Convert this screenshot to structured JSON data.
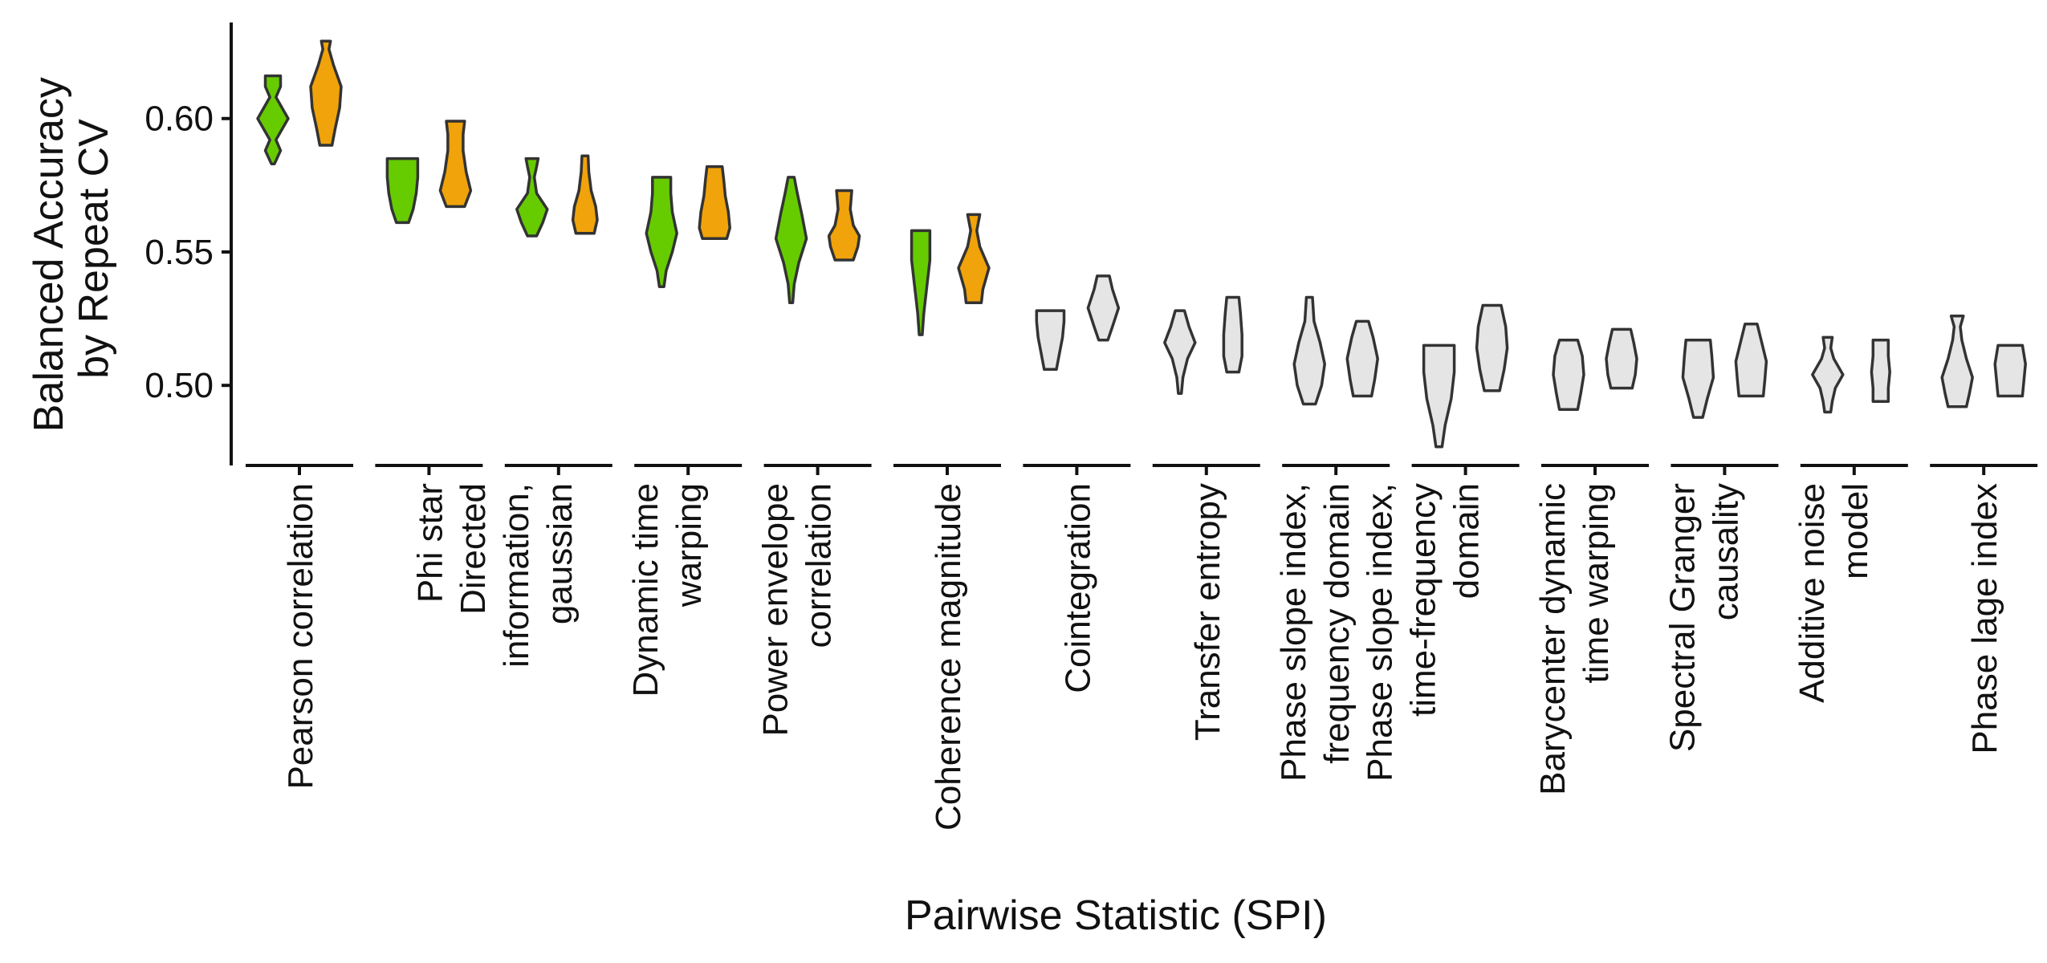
{
  "chart_data": {
    "type": "violin",
    "xlabel": "Pairwise Statistic (SPI)",
    "ylabel": [
      "Balanced Accuracy",
      "by Repeat CV"
    ],
    "ylim": [
      0.47,
      0.636
    ],
    "yticks": [
      "0.50",
      "0.55",
      "0.60"
    ],
    "ytick_values": [
      0.5,
      0.55,
      0.6
    ],
    "colors": {
      "green": "#66cc00",
      "orange": "#f0a30a",
      "grey": "#e5e5e5",
      "outline": "#333333"
    },
    "categories": [
      {
        "label": [
          "Pearson correlation"
        ],
        "series": [
          {
            "color": "green",
            "min": 0.583,
            "max": 0.616,
            "shape": [
              [
                0.583,
                0.1
              ],
              [
                0.588,
                0.5
              ],
              [
                0.592,
                0.2
              ],
              [
                0.6,
                1.0
              ],
              [
                0.608,
                0.2
              ],
              [
                0.612,
                0.5
              ],
              [
                0.616,
                0.5
              ]
            ]
          },
          {
            "color": "orange",
            "min": 0.59,
            "max": 0.629,
            "shape": [
              [
                0.59,
                0.4
              ],
              [
                0.596,
                0.6
              ],
              [
                0.604,
                0.9
              ],
              [
                0.612,
                1.0
              ],
              [
                0.62,
                0.5
              ],
              [
                0.626,
                0.2
              ],
              [
                0.629,
                0.3
              ]
            ]
          }
        ]
      },
      {
        "label": [
          "Phi star"
        ],
        "series": [
          {
            "color": "green",
            "min": 0.561,
            "max": 0.585,
            "shape": [
              [
                0.561,
                0.4
              ],
              [
                0.566,
                0.7
              ],
              [
                0.572,
                0.9
              ],
              [
                0.578,
                1.0
              ],
              [
                0.585,
                1.0
              ]
            ]
          },
          {
            "color": "orange",
            "min": 0.567,
            "max": 0.599,
            "shape": [
              [
                0.567,
                0.6
              ],
              [
                0.573,
                1.0
              ],
              [
                0.58,
                0.7
              ],
              [
                0.588,
                0.5
              ],
              [
                0.594,
                0.5
              ],
              [
                0.599,
                0.6
              ]
            ]
          }
        ]
      },
      {
        "label": [
          "Directed",
          "information,",
          "gaussian"
        ],
        "series": [
          {
            "color": "green",
            "min": 0.556,
            "max": 0.585,
            "shape": [
              [
                0.556,
                0.3
              ],
              [
                0.561,
                0.7
              ],
              [
                0.566,
                1.0
              ],
              [
                0.572,
                0.3
              ],
              [
                0.578,
                0.15
              ],
              [
                0.582,
                0.3
              ],
              [
                0.585,
                0.4
              ]
            ]
          },
          {
            "color": "orange",
            "min": 0.557,
            "max": 0.586,
            "shape": [
              [
                0.557,
                0.6
              ],
              [
                0.562,
                0.8
              ],
              [
                0.567,
                0.7
              ],
              [
                0.573,
                0.4
              ],
              [
                0.58,
                0.25
              ],
              [
                0.586,
                0.2
              ]
            ]
          }
        ]
      },
      {
        "label": [
          "Dynamic time",
          "warping"
        ],
        "series": [
          {
            "color": "green",
            "min": 0.537,
            "max": 0.578,
            "shape": [
              [
                0.537,
                0.15
              ],
              [
                0.543,
                0.3
              ],
              [
                0.55,
                0.7
              ],
              [
                0.557,
                1.0
              ],
              [
                0.565,
                0.7
              ],
              [
                0.572,
                0.6
              ],
              [
                0.578,
                0.6
              ]
            ]
          },
          {
            "color": "orange",
            "min": 0.555,
            "max": 0.582,
            "shape": [
              [
                0.555,
                0.8
              ],
              [
                0.559,
                1.0
              ],
              [
                0.565,
                0.9
              ],
              [
                0.571,
                0.7
              ],
              [
                0.577,
                0.6
              ],
              [
                0.582,
                0.5
              ]
            ]
          }
        ]
      },
      {
        "label": [
          "Power envelope",
          "correlation"
        ],
        "series": [
          {
            "color": "green",
            "min": 0.531,
            "max": 0.578,
            "shape": [
              [
                0.531,
                0.1
              ],
              [
                0.538,
                0.2
              ],
              [
                0.546,
                0.5
              ],
              [
                0.555,
                1.0
              ],
              [
                0.564,
                0.7
              ],
              [
                0.572,
                0.4
              ],
              [
                0.578,
                0.2
              ]
            ]
          },
          {
            "color": "orange",
            "min": 0.547,
            "max": 0.573,
            "shape": [
              [
                0.547,
                0.6
              ],
              [
                0.552,
                0.9
              ],
              [
                0.556,
                1.0
              ],
              [
                0.56,
                0.6
              ],
              [
                0.566,
                0.4
              ],
              [
                0.573,
                0.5
              ]
            ]
          }
        ]
      },
      {
        "label": [
          "Coherence magnitude"
        ],
        "series": [
          {
            "color": "green",
            "min": 0.519,
            "max": 0.558,
            "shape": [
              [
                0.519,
                0.1
              ],
              [
                0.527,
                0.2
              ],
              [
                0.537,
                0.4
              ],
              [
                0.547,
                0.6
              ],
              [
                0.553,
                0.6
              ],
              [
                0.558,
                0.6
              ]
            ]
          },
          {
            "color": "orange",
            "min": 0.531,
            "max": 0.564,
            "shape": [
              [
                0.531,
                0.5
              ],
              [
                0.536,
                0.6
              ],
              [
                0.544,
                1.0
              ],
              [
                0.552,
                0.4
              ],
              [
                0.558,
                0.2
              ],
              [
                0.564,
                0.4
              ]
            ]
          }
        ]
      },
      {
        "label": [
          "Cointegration"
        ],
        "series": [
          {
            "color": "grey",
            "min": 0.506,
            "max": 0.528,
            "shape": [
              [
                0.506,
                0.4
              ],
              [
                0.512,
                0.6
              ],
              [
                0.518,
                0.8
              ],
              [
                0.524,
                0.9
              ],
              [
                0.528,
                0.9
              ]
            ]
          },
          {
            "color": "grey",
            "min": 0.517,
            "max": 0.541,
            "shape": [
              [
                0.517,
                0.3
              ],
              [
                0.522,
                0.6
              ],
              [
                0.529,
                1.0
              ],
              [
                0.536,
                0.6
              ],
              [
                0.541,
                0.4
              ]
            ]
          }
        ]
      },
      {
        "label": [
          "Transfer entropy"
        ],
        "series": [
          {
            "color": "grey",
            "min": 0.497,
            "max": 0.528,
            "shape": [
              [
                0.497,
                0.1
              ],
              [
                0.503,
                0.2
              ],
              [
                0.51,
                0.5
              ],
              [
                0.516,
                1.0
              ],
              [
                0.522,
                0.6
              ],
              [
                0.528,
                0.3
              ]
            ]
          },
          {
            "color": "grey",
            "min": 0.505,
            "max": 0.533,
            "shape": [
              [
                0.505,
                0.4
              ],
              [
                0.511,
                0.6
              ],
              [
                0.519,
                0.6
              ],
              [
                0.527,
                0.5
              ],
              [
                0.533,
                0.4
              ]
            ]
          }
        ]
      },
      {
        "label": [
          "Phase slope index,",
          "frequency domain"
        ],
        "series": [
          {
            "color": "grey",
            "min": 0.493,
            "max": 0.533,
            "shape": [
              [
                0.493,
                0.4
              ],
              [
                0.5,
                0.8
              ],
              [
                0.508,
                1.0
              ],
              [
                0.516,
                0.7
              ],
              [
                0.524,
                0.3
              ],
              [
                0.533,
                0.2
              ]
            ]
          },
          {
            "color": "grey",
            "min": 0.496,
            "max": 0.524,
            "shape": [
              [
                0.496,
                0.6
              ],
              [
                0.502,
                0.8
              ],
              [
                0.51,
                1.0
              ],
              [
                0.518,
                0.7
              ],
              [
                0.524,
                0.4
              ]
            ]
          }
        ]
      },
      {
        "label": [
          "Phase slope index,",
          "time-frequency",
          "domain"
        ],
        "series": [
          {
            "color": "grey",
            "min": 0.477,
            "max": 0.515,
            "shape": [
              [
                0.477,
                0.2
              ],
              [
                0.485,
                0.4
              ],
              [
                0.495,
                0.8
              ],
              [
                0.505,
                1.0
              ],
              [
                0.515,
                1.0
              ]
            ]
          },
          {
            "color": "grey",
            "min": 0.498,
            "max": 0.53,
            "shape": [
              [
                0.498,
                0.5
              ],
              [
                0.506,
                0.8
              ],
              [
                0.514,
                1.0
              ],
              [
                0.522,
                0.9
              ],
              [
                0.53,
                0.6
              ]
            ]
          }
        ]
      },
      {
        "label": [
          "Barycenter dynamic",
          "time warping"
        ],
        "series": [
          {
            "color": "grey",
            "min": 0.491,
            "max": 0.517,
            "shape": [
              [
                0.491,
                0.6
              ],
              [
                0.497,
                0.8
              ],
              [
                0.504,
                1.0
              ],
              [
                0.511,
                0.9
              ],
              [
                0.517,
                0.6
              ]
            ]
          },
          {
            "color": "grey",
            "min": 0.499,
            "max": 0.521,
            "shape": [
              [
                0.499,
                0.7
              ],
              [
                0.504,
                0.9
              ],
              [
                0.51,
                1.0
              ],
              [
                0.516,
                0.8
              ],
              [
                0.521,
                0.6
              ]
            ]
          }
        ]
      },
      {
        "label": [
          "Spectral Granger",
          "causality"
        ],
        "series": [
          {
            "color": "grey",
            "min": 0.488,
            "max": 0.517,
            "shape": [
              [
                0.488,
                0.3
              ],
              [
                0.495,
                0.6
              ],
              [
                0.503,
                1.0
              ],
              [
                0.511,
                0.9
              ],
              [
                0.517,
                0.8
              ]
            ]
          },
          {
            "color": "grey",
            "min": 0.496,
            "max": 0.523,
            "shape": [
              [
                0.496,
                0.8
              ],
              [
                0.502,
                0.9
              ],
              [
                0.509,
                1.0
              ],
              [
                0.516,
                0.7
              ],
              [
                0.523,
                0.4
              ]
            ]
          }
        ]
      },
      {
        "label": [
          "Additive noise",
          "model"
        ],
        "series": [
          {
            "color": "grey",
            "min": 0.49,
            "max": 0.518,
            "shape": [
              [
                0.49,
                0.2
              ],
              [
                0.494,
                0.3
              ],
              [
                0.499,
                0.5
              ],
              [
                0.504,
                1.0
              ],
              [
                0.51,
                0.4
              ],
              [
                0.514,
                0.2
              ],
              [
                0.518,
                0.3
              ]
            ]
          },
          {
            "color": "grey",
            "min": 0.494,
            "max": 0.517,
            "shape": [
              [
                0.494,
                0.5
              ],
              [
                0.499,
                0.5
              ],
              [
                0.505,
                0.6
              ],
              [
                0.511,
                0.5
              ],
              [
                0.517,
                0.5
              ]
            ]
          }
        ]
      },
      {
        "label": [
          "Phase lage index"
        ],
        "series": [
          {
            "color": "grey",
            "min": 0.492,
            "max": 0.526,
            "shape": [
              [
                0.492,
                0.6
              ],
              [
                0.497,
                0.8
              ],
              [
                0.503,
                1.0
              ],
              [
                0.51,
                0.6
              ],
              [
                0.517,
                0.3
              ],
              [
                0.522,
                0.2
              ],
              [
                0.526,
                0.4
              ]
            ]
          },
          {
            "color": "grey",
            "min": 0.496,
            "max": 0.515,
            "shape": [
              [
                0.496,
                0.8
              ],
              [
                0.502,
                0.9
              ],
              [
                0.508,
                1.0
              ],
              [
                0.515,
                0.8
              ]
            ]
          }
        ]
      }
    ]
  }
}
